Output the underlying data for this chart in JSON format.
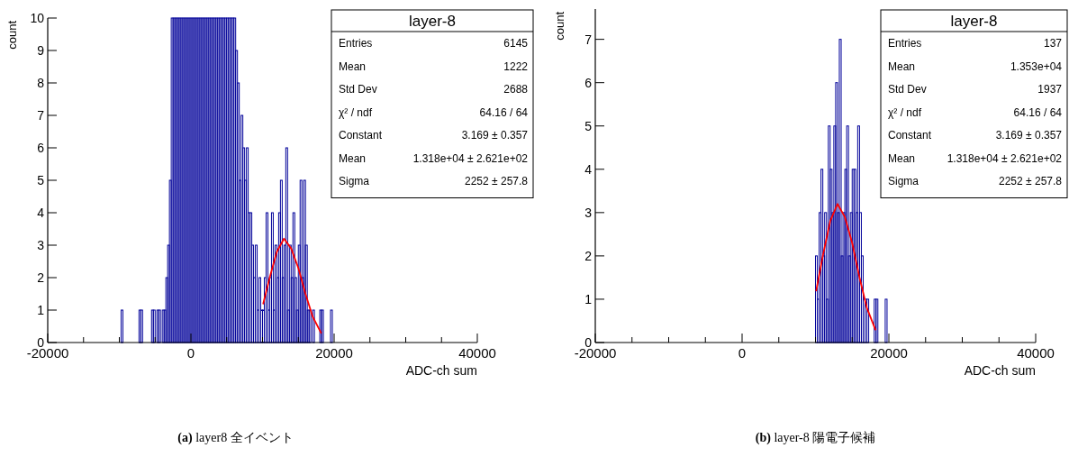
{
  "chart_data": [
    {
      "type": "histogram",
      "title": "layer-8",
      "xlabel": "ADC-ch sum",
      "ylabel": "count",
      "subtitle": "(a) layer8 全イベント",
      "annotations": [
        "Entries",
        "6145",
        "Mean",
        "1222",
        "Std Dev",
        "2688",
        "χ² / ndf",
        "64.16 / 64",
        "Constant",
        "3.169 ± 0.357",
        "Mean",
        "1.318e+04 ± 2.621e+02",
        "Sigma",
        "2252 ± 257.8"
      ],
      "bins": [
        -10000,
        -9750,
        -9500,
        -9250,
        -9000,
        -8750,
        -8500,
        -8250,
        -8000,
        -7750,
        -7500,
        -7250,
        -7000,
        -6750,
        -6500,
        -6250,
        -6000,
        -5750,
        -5500,
        -5250,
        -5000,
        -4750,
        -4500,
        -4250,
        -4000,
        -3750,
        -3500,
        -3250,
        -3000,
        -2750,
        -2500,
        -2250,
        -2000,
        -1750,
        -1500,
        -1250,
        -1000,
        -750,
        -500,
        -250,
        0,
        250,
        500,
        750,
        1000,
        1250,
        1500,
        1750,
        2000,
        2250,
        2500,
        2750,
        3000,
        3250,
        3500,
        3750,
        4000,
        4250,
        4500,
        4750,
        5000,
        5250,
        5500,
        5750,
        6000,
        6250,
        6500,
        6750,
        7000,
        7250,
        7500,
        7750,
        8000,
        8250,
        8500,
        8750,
        9000,
        9250,
        9500,
        9750,
        10000,
        10250,
        10500,
        10750,
        11000,
        11250,
        11500,
        11750,
        12000,
        12250,
        12500,
        12750,
        13000,
        13250,
        13500,
        13750,
        14000,
        14250,
        14500,
        14750,
        15000,
        15250,
        15500,
        15750,
        16000,
        16250,
        16500,
        16750,
        17000,
        17250,
        17500,
        17750,
        18000,
        18250,
        18500,
        18750,
        19000,
        19250,
        19500,
        19750,
        20000
      ],
      "series": [
        {
          "color": "#000099",
          "values": [
            0,
            1,
            0,
            0,
            0,
            0,
            0,
            0,
            0,
            0,
            0,
            1,
            1,
            0,
            0,
            0,
            0,
            0,
            1,
            1,
            0,
            1,
            1,
            0,
            1,
            1,
            2,
            3,
            5,
            10,
            10,
            10,
            10,
            10,
            10,
            10,
            10,
            10,
            10,
            10,
            10,
            10,
            10,
            10,
            10,
            10,
            10,
            10,
            10,
            10,
            10,
            10,
            10,
            10,
            10,
            10,
            10,
            10,
            10,
            10,
            10,
            10,
            10,
            10,
            10,
            9,
            8,
            5,
            7,
            6,
            5,
            6,
            4,
            4,
            3,
            2,
            3,
            1,
            2,
            1,
            1,
            2,
            4,
            1,
            2,
            4,
            1,
            3,
            2,
            4,
            5,
            2,
            3,
            6,
            1,
            3,
            2,
            4,
            2,
            1,
            3,
            5,
            2,
            5,
            3,
            1,
            1,
            0,
            1,
            0,
            0,
            0,
            1,
            1,
            0,
            0,
            0,
            0,
            1,
            0
          ]
        },
        {
          "type": "line",
          "color": "#ff0000",
          "x": [
            10100,
            11000,
            12000,
            13000,
            14000,
            15000,
            16000,
            17000,
            18160
          ],
          "values": [
            1.2,
            2.0,
            2.8,
            3.2,
            2.9,
            2.3,
            1.5,
            0.8,
            0.3
          ]
        }
      ],
      "xlim": [
        -20000,
        40000
      ],
      "ylim": [
        0,
        10
      ],
      "xticks": [
        -20000,
        {
          "value": -15000,
          "label": null
        },
        {
          "value": -10000,
          "label": null
        },
        {
          "value": -5000,
          "label": null
        },
        0,
        {
          "value": 5000,
          "label": null
        },
        {
          "value": 10000,
          "label": null
        },
        {
          "value": 15000,
          "label": null
        },
        20000,
        {
          "value": 25000,
          "label": null
        },
        {
          "value": 30000,
          "label": null
        },
        {
          "value": 35000,
          "label": null
        },
        40000
      ],
      "yticks": [
        0,
        1,
        2,
        3,
        4,
        5,
        6,
        7,
        8,
        9,
        10
      ],
      "grid": false
    },
    {
      "type": "histogram",
      "title": "layer-8",
      "xlabel": "ADC-ch sum",
      "ylabel": "count",
      "subtitle": "(b) layer-8 陽電子候補",
      "annotations": [
        "Entries",
        "137",
        "Mean",
        "1.353e+04",
        "Std Dev",
        "1937",
        "χ² / ndf",
        "64.16 / 64",
        "Constant",
        "3.169 ± 0.357",
        "Mean",
        "1.318e+04 ± 2.621e+02",
        "Sigma",
        "2252 ± 257.8"
      ],
      "bins": [
        10000,
        10250,
        10500,
        10750,
        11000,
        11250,
        11500,
        11750,
        12000,
        12250,
        12500,
        12750,
        13000,
        13250,
        13500,
        13750,
        14000,
        14250,
        14500,
        14750,
        15000,
        15250,
        15500,
        15750,
        16000,
        16250,
        16500,
        16750,
        17000,
        17250,
        17500,
        17750,
        18000,
        18250,
        18500,
        18750,
        19000,
        19250,
        19500,
        19750,
        20000
      ],
      "series": [
        {
          "color": "#000099",
          "values": [
            2,
            1,
            3,
            4,
            2,
            3,
            1,
            5,
            4,
            3,
            5,
            6,
            3,
            7,
            2,
            3,
            4,
            5,
            2,
            3,
            4,
            4,
            3,
            5,
            3,
            2,
            1,
            1,
            1,
            0,
            0,
            0,
            1,
            1,
            0,
            0,
            0,
            0,
            1,
            0
          ]
        },
        {
          "type": "line",
          "color": "#ff0000",
          "x": [
            10100,
            11000,
            12000,
            13000,
            14000,
            15000,
            16000,
            17000,
            18160
          ],
          "values": [
            1.2,
            2.0,
            2.8,
            3.2,
            2.9,
            2.3,
            1.5,
            0.8,
            0.3
          ]
        }
      ],
      "xlim": [
        -20000,
        40000
      ],
      "ylim": [
        0,
        7.7
      ],
      "xticks": [
        -20000,
        {
          "value": -15000,
          "label": null
        },
        {
          "value": -10000,
          "label": null
        },
        {
          "value": -5000,
          "label": null
        },
        0,
        {
          "value": 5000,
          "label": null
        },
        {
          "value": 10000,
          "label": null
        },
        {
          "value": 15000,
          "label": null
        },
        20000,
        {
          "value": 25000,
          "label": null
        },
        {
          "value": 30000,
          "label": null
        },
        {
          "value": 35000,
          "label": null
        },
        40000
      ],
      "yticks": [
        0,
        1,
        2,
        3,
        4,
        5,
        6,
        7
      ],
      "grid": false
    }
  ]
}
